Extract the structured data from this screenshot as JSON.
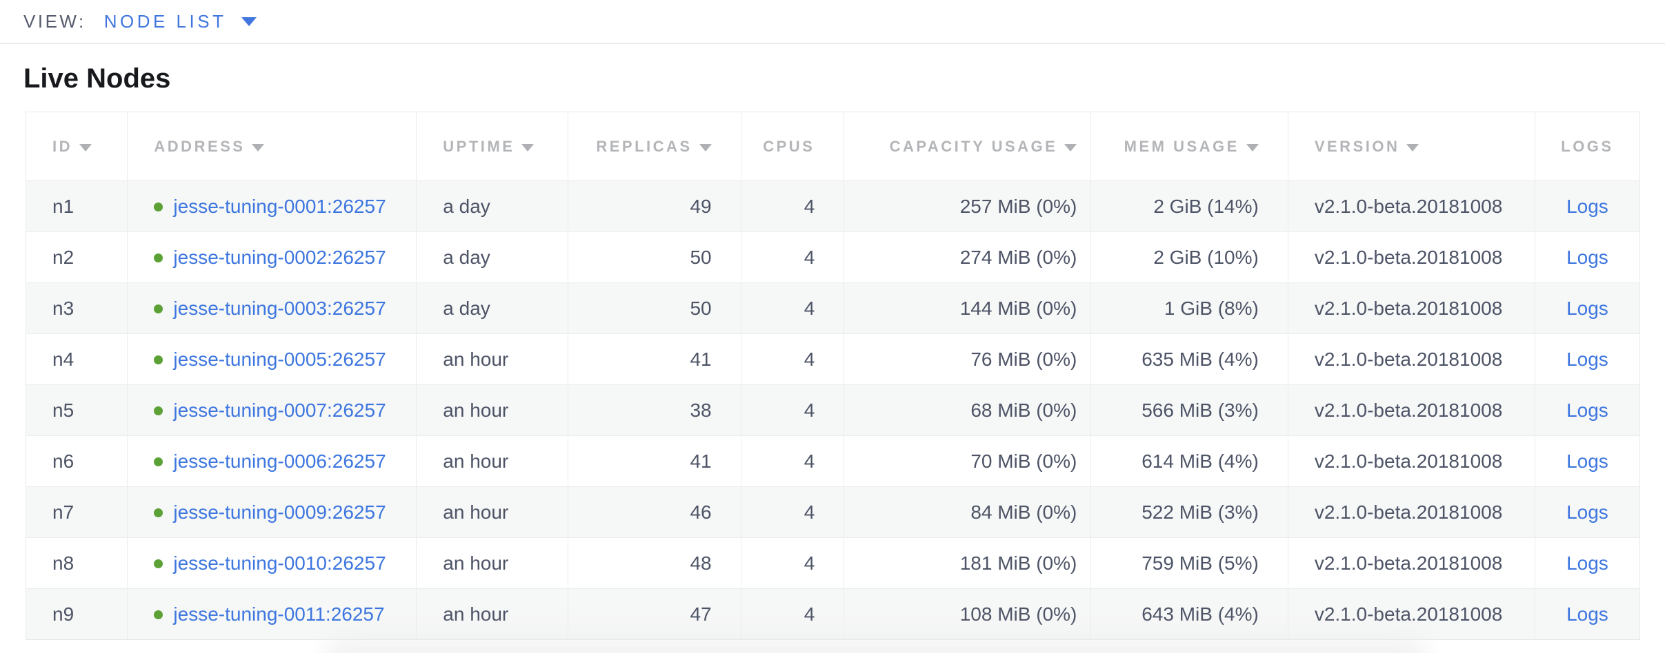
{
  "view_bar": {
    "label": "VIEW:",
    "selected": "NODE LIST"
  },
  "page": {
    "title": "Live Nodes"
  },
  "colors": {
    "accent_blue": "#3d76df",
    "healthy_green": "#5ba135",
    "header_gray": "#b3b5b8",
    "body_text": "#4d5466",
    "row_stripe": "#f6f7f7",
    "border": "#e8e9ea"
  },
  "table": {
    "columns": [
      {
        "key": "id",
        "label": "ID",
        "sortable": true,
        "align": "al"
      },
      {
        "key": "address",
        "label": "ADDRESS",
        "sortable": true,
        "align": "al",
        "type": "address"
      },
      {
        "key": "uptime",
        "label": "UPTIME",
        "sortable": true,
        "align": "al"
      },
      {
        "key": "replicas",
        "label": "REPLICAS",
        "sortable": true,
        "align": "ar"
      },
      {
        "key": "cpus",
        "label": "CPUS",
        "sortable": false,
        "align": "ar"
      },
      {
        "key": "capacity_usage",
        "label": "CAPACITY USAGE",
        "sortable": true,
        "align": "ar"
      },
      {
        "key": "mem_usage",
        "label": "MEM USAGE",
        "sortable": true,
        "align": "ar"
      },
      {
        "key": "version",
        "label": "VERSION",
        "sortable": true,
        "align": "al"
      },
      {
        "key": "logs",
        "label": "LOGS",
        "sortable": false,
        "align": "ac",
        "type": "link"
      }
    ],
    "rows": [
      {
        "id": "n1",
        "status": "healthy",
        "address": "jesse-tuning-0001:26257",
        "uptime": "a day",
        "replicas": "49",
        "cpus": "4",
        "capacity_usage": "257 MiB (0%)",
        "mem_usage": "2 GiB (14%)",
        "version": "v2.1.0-beta.20181008",
        "logs": "Logs"
      },
      {
        "id": "n2",
        "status": "healthy",
        "address": "jesse-tuning-0002:26257",
        "uptime": "a day",
        "replicas": "50",
        "cpus": "4",
        "capacity_usage": "274 MiB (0%)",
        "mem_usage": "2 GiB (10%)",
        "version": "v2.1.0-beta.20181008",
        "logs": "Logs"
      },
      {
        "id": "n3",
        "status": "healthy",
        "address": "jesse-tuning-0003:26257",
        "uptime": "a day",
        "replicas": "50",
        "cpus": "4",
        "capacity_usage": "144 MiB (0%)",
        "mem_usage": "1 GiB (8%)",
        "version": "v2.1.0-beta.20181008",
        "logs": "Logs"
      },
      {
        "id": "n4",
        "status": "healthy",
        "address": "jesse-tuning-0005:26257",
        "uptime": "an hour",
        "replicas": "41",
        "cpus": "4",
        "capacity_usage": "76 MiB (0%)",
        "mem_usage": "635 MiB (4%)",
        "version": "v2.1.0-beta.20181008",
        "logs": "Logs"
      },
      {
        "id": "n5",
        "status": "healthy",
        "address": "jesse-tuning-0007:26257",
        "uptime": "an hour",
        "replicas": "38",
        "cpus": "4",
        "capacity_usage": "68 MiB (0%)",
        "mem_usage": "566 MiB (3%)",
        "version": "v2.1.0-beta.20181008",
        "logs": "Logs"
      },
      {
        "id": "n6",
        "status": "healthy",
        "address": "jesse-tuning-0006:26257",
        "uptime": "an hour",
        "replicas": "41",
        "cpus": "4",
        "capacity_usage": "70 MiB (0%)",
        "mem_usage": "614 MiB (4%)",
        "version": "v2.1.0-beta.20181008",
        "logs": "Logs"
      },
      {
        "id": "n7",
        "status": "healthy",
        "address": "jesse-tuning-0009:26257",
        "uptime": "an hour",
        "replicas": "46",
        "cpus": "4",
        "capacity_usage": "84 MiB (0%)",
        "mem_usage": "522 MiB (3%)",
        "version": "v2.1.0-beta.20181008",
        "logs": "Logs"
      },
      {
        "id": "n8",
        "status": "healthy",
        "address": "jesse-tuning-0010:26257",
        "uptime": "an hour",
        "replicas": "48",
        "cpus": "4",
        "capacity_usage": "181 MiB (0%)",
        "mem_usage": "759 MiB (5%)",
        "version": "v2.1.0-beta.20181008",
        "logs": "Logs"
      },
      {
        "id": "n9",
        "status": "healthy",
        "address": "jesse-tuning-0011:26257",
        "uptime": "an hour",
        "replicas": "47",
        "cpus": "4",
        "capacity_usage": "108 MiB (0%)",
        "mem_usage": "643 MiB (4%)",
        "version": "v2.1.0-beta.20181008",
        "logs": "Logs"
      }
    ]
  }
}
